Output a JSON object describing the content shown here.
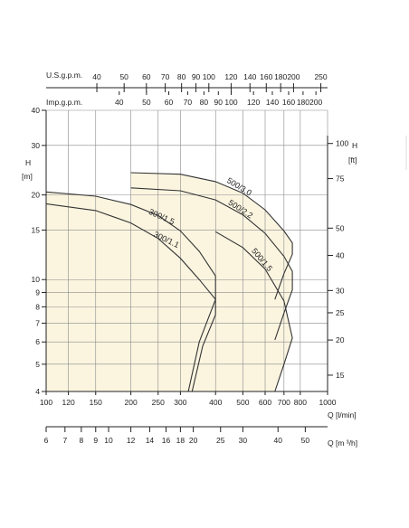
{
  "chart_data": {
    "type": "area",
    "title": "",
    "x_axis": {
      "label": "Q [l/min]",
      "scale": "log",
      "range": [
        100,
        1000
      ],
      "ticks": [
        100,
        120,
        150,
        200,
        250,
        300,
        400,
        500,
        600,
        700,
        800,
        1000
      ]
    },
    "x_axis_m3h": {
      "label": "Q [m ³/h]",
      "ticks": [
        6,
        7,
        8,
        9,
        10,
        12,
        14,
        16,
        18,
        20,
        25,
        30,
        40,
        50
      ]
    },
    "x_axis_usgpm": {
      "label": "U.S.g.p.m.",
      "tick_labels": [
        40,
        50,
        60,
        70,
        80,
        90,
        100,
        120,
        140,
        160,
        180,
        200,
        250
      ]
    },
    "x_axis_impgpm": {
      "label": "Imp.g.p.m.",
      "tick_labels": [
        40,
        50,
        60,
        70,
        80,
        90,
        100,
        120,
        140,
        160,
        180,
        200
      ]
    },
    "y_axis_left": {
      "label": "H [m]",
      "scale": "log",
      "range": [
        4,
        40
      ],
      "ticks": [
        4,
        5,
        6,
        7,
        8,
        9,
        10,
        15,
        20,
        30,
        40
      ]
    },
    "y_axis_right": {
      "label": "H [ft]",
      "ticks": [
        15,
        20,
        25,
        30,
        40,
        50,
        75,
        100
      ]
    },
    "grid": true,
    "series": [
      {
        "name": "300/1.5",
        "x": [
          100,
          150,
          200,
          250,
          300,
          350,
          400,
          400,
          350,
          320
        ],
        "y": [
          20.5,
          19.8,
          18.5,
          16.9,
          14.9,
          12.6,
          10.3,
          8.5,
          6.0,
          4.0
        ]
      },
      {
        "name": "300/1.1",
        "x": [
          100,
          150,
          200,
          250,
          300,
          350,
          400,
          400,
          360,
          330
        ],
        "y": [
          18.6,
          17.6,
          15.9,
          14.0,
          11.9,
          10.0,
          8.5,
          7.5,
          5.8,
          4.0
        ]
      },
      {
        "name": "500/3.0",
        "x": [
          200,
          300,
          400,
          500,
          600,
          700,
          750,
          750,
          700,
          650
        ],
        "y": [
          24.0,
          23.7,
          22.3,
          20.3,
          17.7,
          14.9,
          13.5,
          12.3,
          10.5,
          8.5
        ]
      },
      {
        "name": "500/2.2",
        "x": [
          200,
          300,
          400,
          500,
          600,
          700,
          750,
          750,
          700,
          650
        ],
        "y": [
          21.2,
          20.7,
          19.2,
          17.0,
          14.6,
          12.1,
          10.7,
          9.2,
          7.6,
          6.1
        ]
      },
      {
        "name": "500/1.5",
        "x": [
          400,
          500,
          600,
          700,
          750,
          750,
          700,
          650
        ],
        "y": [
          14.8,
          13.0,
          10.9,
          8.4,
          6.2,
          6.2,
          5.0,
          4.0
        ]
      }
    ],
    "colors": {
      "fill_top": "#ecd27a",
      "fill_bottom": "#fbf5e0",
      "stroke": "#333333",
      "grid": "#8a8a8a"
    }
  }
}
